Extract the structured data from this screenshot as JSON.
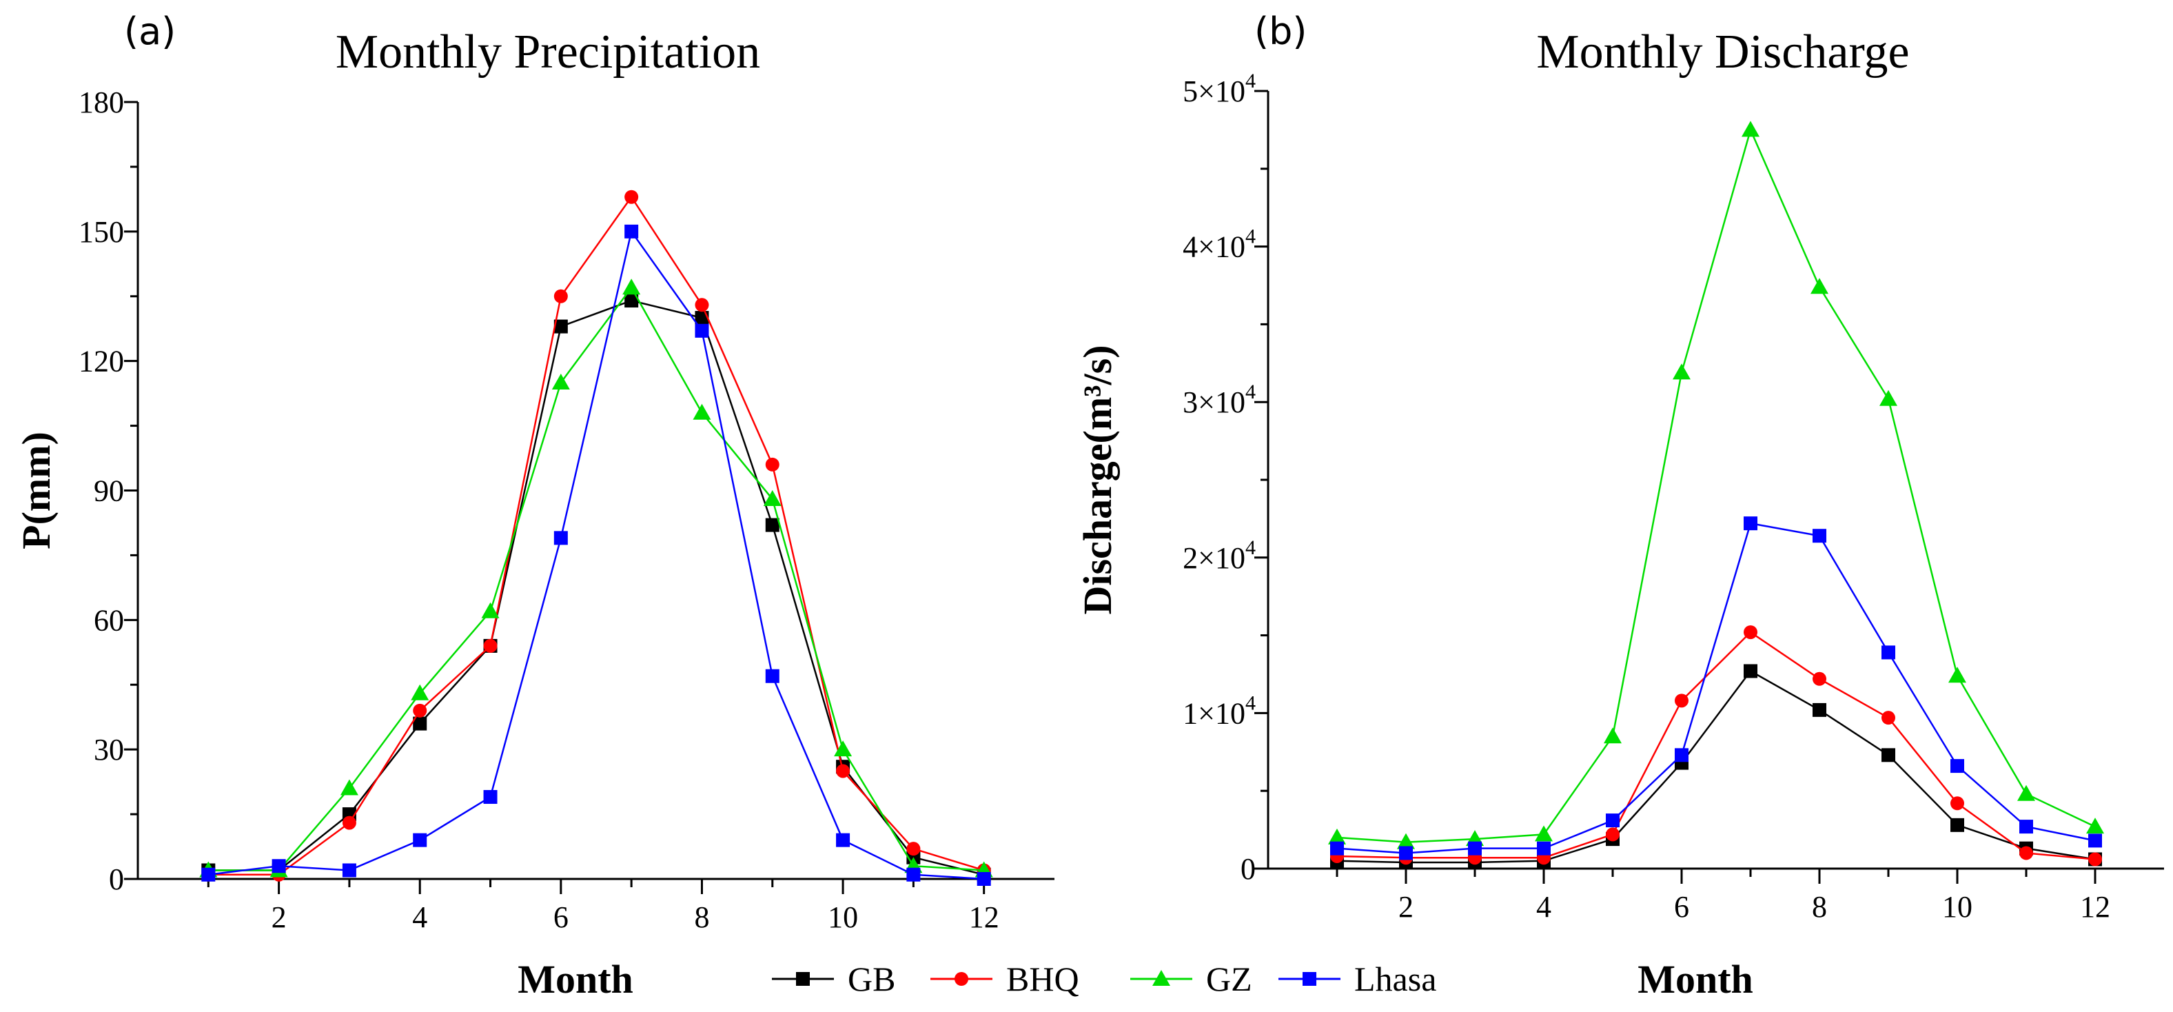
{
  "panels": [
    {
      "label": "(a)"
    },
    {
      "label": "(b)"
    }
  ],
  "legend": {
    "entries": [
      {
        "name": "GB",
        "color": "#000000",
        "marker": "square"
      },
      {
        "name": "BHQ",
        "color": "#ff0000",
        "marker": "circle"
      },
      {
        "name": "GZ",
        "color": "#00dd00",
        "marker": "triangle"
      },
      {
        "name": "Lhasa",
        "color": "#0000ff",
        "marker": "square"
      }
    ]
  },
  "chart_data": [
    {
      "type": "line",
      "title": "Monthly Precipitation",
      "xlabel": "Month",
      "ylabel": "P(mm)",
      "xlim": [
        0,
        13
      ],
      "ylim": [
        0,
        180
      ],
      "xticks": [
        "2",
        "4",
        "6",
        "8",
        "10",
        "12"
      ],
      "yticks": [
        "0",
        "30",
        "60",
        "90",
        "120",
        "150",
        "180"
      ],
      "x": [
        1,
        2,
        3,
        4,
        5,
        6,
        7,
        8,
        9,
        10,
        11,
        12
      ],
      "series": [
        {
          "name": "GB",
          "color": "#000000",
          "marker": "square",
          "values": [
            2,
            2,
            15,
            36,
            54,
            128,
            134,
            130,
            82,
            26,
            5,
            1
          ]
        },
        {
          "name": "BHQ",
          "color": "#ff0000",
          "marker": "circle",
          "values": [
            1,
            1,
            13,
            39,
            54,
            135,
            158,
            133,
            96,
            25,
            7,
            2
          ]
        },
        {
          "name": "GZ",
          "color": "#00dd00",
          "marker": "triangle",
          "values": [
            2,
            2,
            21,
            43,
            62,
            115,
            137,
            108,
            88,
            30,
            3,
            2
          ]
        },
        {
          "name": "Lhasa",
          "color": "#0000ff",
          "marker": "square",
          "values": [
            1,
            3,
            2,
            9,
            19,
            79,
            150,
            127,
            47,
            9,
            1,
            0
          ]
        }
      ]
    },
    {
      "type": "line",
      "title": "Monthly Discharge",
      "xlabel": "Month",
      "ylabel": "Discharge(m³/s)",
      "xlim": [
        0,
        13
      ],
      "ylim": [
        0,
        50000
      ],
      "xticks": [
        "2",
        "4",
        "6",
        "8",
        "10",
        "12"
      ],
      "yticks": [
        {
          "mant": "0",
          "exp": ""
        },
        {
          "mant": "1×10",
          "exp": "4"
        },
        {
          "mant": "2×10",
          "exp": "4"
        },
        {
          "mant": "3×10",
          "exp": "4"
        },
        {
          "mant": "4×10",
          "exp": "4"
        },
        {
          "mant": "5×10",
          "exp": "4"
        }
      ],
      "x": [
        1,
        2,
        3,
        4,
        5,
        6,
        7,
        8,
        9,
        10,
        11,
        12
      ],
      "series": [
        {
          "name": "GB",
          "color": "#000000",
          "marker": "square",
          "values": [
            500,
            400,
            400,
            500,
            1900,
            6800,
            12700,
            10200,
            7300,
            2800,
            1300,
            600
          ]
        },
        {
          "name": "BHQ",
          "color": "#ff0000",
          "marker": "circle",
          "values": [
            800,
            700,
            700,
            700,
            2200,
            10800,
            15200,
            12200,
            9700,
            4200,
            1000,
            600
          ]
        },
        {
          "name": "GZ",
          "color": "#00dd00",
          "marker": "triangle",
          "values": [
            2000,
            1700,
            1900,
            2200,
            8500,
            31900,
            47500,
            37400,
            30200,
            12400,
            4800,
            2700
          ]
        },
        {
          "name": "Lhasa",
          "color": "#0000ff",
          "marker": "square",
          "values": [
            1300,
            1000,
            1300,
            1300,
            3100,
            7300,
            22200,
            21400,
            13900,
            6600,
            2700,
            1800
          ]
        }
      ]
    }
  ]
}
